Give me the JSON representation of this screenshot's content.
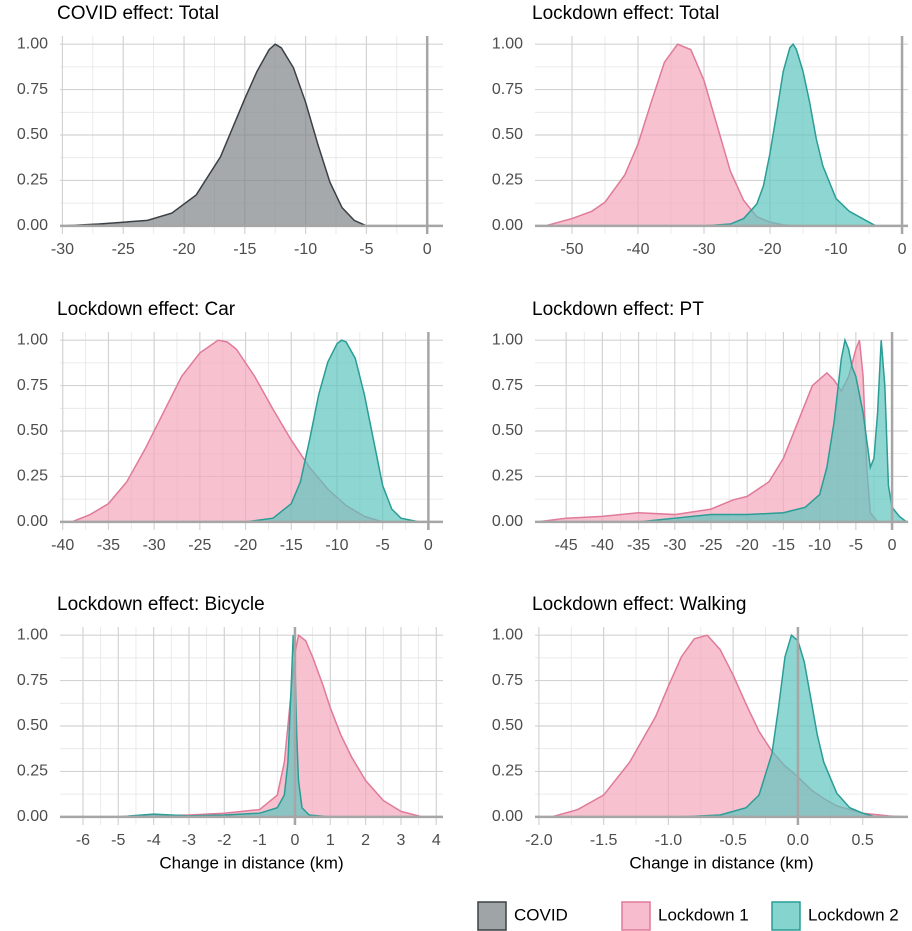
{
  "chart_data": [
    {
      "type": "area",
      "title": "COVID effect: Total",
      "xlim": [
        -30.2,
        1.3
      ],
      "xticks": [
        -30,
        -25,
        -20,
        -15,
        -10,
        -5,
        0
      ],
      "ylim": [
        -0.045,
        1.045
      ],
      "yticks": [
        {
          "value": 0,
          "label": "0.00"
        },
        {
          "value": 0.25,
          "label": "0.25"
        },
        {
          "value": 0.5,
          "label": "0.50"
        },
        {
          "value": 0.75,
          "label": "0.75"
        },
        {
          "value": 1,
          "label": "1.00"
        }
      ],
      "grid": true,
      "series": [
        {
          "name": "COVID",
          "color": "#7f8589",
          "edge_color": "#3a4045",
          "x": [
            -30,
            -27,
            -25,
            -23,
            -21,
            -19,
            -17,
            -15,
            -14,
            -13,
            -12.5,
            -12,
            -11,
            -10,
            -9,
            -8,
            -7,
            -6,
            -5
          ],
          "values": [
            0,
            0.01,
            0.02,
            0.03,
            0.07,
            0.17,
            0.38,
            0.7,
            0.85,
            0.97,
            1.0,
            0.98,
            0.87,
            0.68,
            0.45,
            0.24,
            0.1,
            0.03,
            0
          ]
        }
      ]
    },
    {
      "type": "area",
      "title": "Lockdown effect: Total",
      "xlim": [
        -55.6,
        0.9
      ],
      "xticks": [
        -50,
        -40,
        -30,
        -20,
        -10,
        0
      ],
      "ylim": [
        -0.045,
        1.045
      ],
      "yticks": [
        {
          "value": 0,
          "label": "0.00"
        },
        {
          "value": 0.25,
          "label": "0.25"
        },
        {
          "value": 0.5,
          "label": "0.50"
        },
        {
          "value": 0.75,
          "label": "0.75"
        },
        {
          "value": 1,
          "label": "1.00"
        }
      ],
      "grid": true,
      "series": [
        {
          "name": "Lockdown 1",
          "color": "#f4a6bc",
          "edge_color": "#e07a98",
          "x": [
            -54,
            -50,
            -47,
            -45,
            -42,
            -40,
            -38,
            -36,
            -34,
            -32,
            -30,
            -28,
            -26,
            -24,
            -22,
            -20,
            -18,
            -16
          ],
          "values": [
            0,
            0.04,
            0.08,
            0.13,
            0.28,
            0.45,
            0.68,
            0.9,
            1.0,
            0.97,
            0.8,
            0.55,
            0.3,
            0.14,
            0.05,
            0.02,
            0.005,
            0
          ]
        },
        {
          "name": "Lockdown 2",
          "color": "#5cc5bd",
          "edge_color": "#2a9d96",
          "x": [
            -30,
            -26,
            -24,
            -22,
            -21,
            -20,
            -19,
            -18,
            -17,
            -16.5,
            -16,
            -15,
            -14,
            -13,
            -12,
            -10,
            -8,
            -6,
            -4
          ],
          "values": [
            0,
            0.01,
            0.04,
            0.12,
            0.22,
            0.4,
            0.62,
            0.85,
            0.98,
            1.0,
            0.97,
            0.85,
            0.68,
            0.48,
            0.33,
            0.15,
            0.08,
            0.04,
            0
          ]
        }
      ]
    },
    {
      "type": "area",
      "title": "Lockdown effect: Car",
      "xlim": [
        -40.3,
        1.6
      ],
      "xticks": [
        -40,
        -35,
        -30,
        -25,
        -20,
        -15,
        -10,
        -5,
        0
      ],
      "ylim": [
        -0.045,
        1.045
      ],
      "yticks": [
        {
          "value": 0,
          "label": "0.00"
        },
        {
          "value": 0.25,
          "label": "0.25"
        },
        {
          "value": 0.5,
          "label": "0.50"
        },
        {
          "value": 0.75,
          "label": "0.75"
        },
        {
          "value": 1,
          "label": "1.00"
        }
      ],
      "grid": true,
      "series": [
        {
          "name": "Lockdown 1",
          "color": "#f4a6bc",
          "edge_color": "#e07a98",
          "x": [
            -39,
            -37,
            -35,
            -33,
            -31,
            -29,
            -27,
            -25,
            -23,
            -22,
            -21,
            -19,
            -17,
            -15,
            -13,
            -11,
            -9,
            -7,
            -5
          ],
          "values": [
            0,
            0.04,
            0.1,
            0.22,
            0.4,
            0.6,
            0.8,
            0.93,
            1.0,
            0.99,
            0.95,
            0.8,
            0.62,
            0.45,
            0.3,
            0.18,
            0.09,
            0.03,
            0
          ]
        },
        {
          "name": "Lockdown 2",
          "color": "#5cc5bd",
          "edge_color": "#2a9d96",
          "x": [
            -20,
            -17,
            -15,
            -14,
            -13,
            -12,
            -11,
            -10,
            -9.5,
            -9,
            -8,
            -7,
            -6,
            -5,
            -4,
            -3,
            -1
          ],
          "values": [
            0,
            0.02,
            0.1,
            0.22,
            0.45,
            0.7,
            0.88,
            0.98,
            1.0,
            0.99,
            0.9,
            0.7,
            0.45,
            0.2,
            0.07,
            0.02,
            0
          ]
        }
      ]
    },
    {
      "type": "area",
      "title": "Lockdown effect: PT",
      "xlim": [
        -49.3,
        2.2
      ],
      "xticks": [
        -45,
        -40,
        -35,
        -30,
        -25,
        -20,
        -15,
        -10,
        -5,
        0
      ],
      "ylim": [
        -0.045,
        1.045
      ],
      "yticks": [
        {
          "value": 0,
          "label": "0.00"
        },
        {
          "value": 0.25,
          "label": "0.25"
        },
        {
          "value": 0.5,
          "label": "0.50"
        },
        {
          "value": 0.75,
          "label": "0.75"
        },
        {
          "value": 1,
          "label": "1.00"
        }
      ],
      "grid": true,
      "series": [
        {
          "name": "Lockdown 1",
          "color": "#f4a6bc",
          "edge_color": "#e07a98",
          "x": [
            -49,
            -45,
            -40,
            -35,
            -30,
            -25,
            -22,
            -20,
            -17,
            -15,
            -13,
            -11,
            -9,
            -8,
            -7,
            -6,
            -5,
            -4.5,
            -4,
            -3.5,
            -3,
            -2
          ],
          "values": [
            0,
            0.02,
            0.03,
            0.05,
            0.04,
            0.07,
            0.12,
            0.14,
            0.22,
            0.35,
            0.55,
            0.75,
            0.82,
            0.78,
            0.72,
            0.8,
            0.95,
            1.0,
            0.8,
            0.3,
            0.05,
            0
          ]
        },
        {
          "name": "Lockdown 2",
          "color": "#5cc5bd",
          "edge_color": "#2a9d96",
          "x": [
            -35,
            -30,
            -25,
            -20,
            -15,
            -12,
            -10,
            -9,
            -8,
            -7,
            -6.5,
            -6,
            -5.5,
            -5,
            -4,
            -3,
            -2.5,
            -2,
            -1.5,
            -1,
            -0.5,
            0,
            1,
            2
          ],
          "values": [
            0,
            0.02,
            0.04,
            0.04,
            0.05,
            0.08,
            0.15,
            0.3,
            0.55,
            0.9,
            1.0,
            0.95,
            0.85,
            0.8,
            0.6,
            0.3,
            0.35,
            0.6,
            1.0,
            0.75,
            0.2,
            0.08,
            0.03,
            0
          ]
        }
      ]
    },
    {
      "type": "area",
      "title": "Lockdown effect: Bicycle",
      "xlabel": "Change in distance (km)",
      "xlim": [
        -6.65,
        4.19
      ],
      "xticks": [
        -6,
        -5,
        -4,
        -3,
        -2,
        -1,
        0,
        1,
        2,
        3,
        4
      ],
      "ylim": [
        -0.045,
        1.045
      ],
      "yticks": [
        {
          "value": 0,
          "label": "0.00"
        },
        {
          "value": 0.25,
          "label": "0.25"
        },
        {
          "value": 0.5,
          "label": "0.50"
        },
        {
          "value": 0.75,
          "label": "0.75"
        },
        {
          "value": 1,
          "label": "1.00"
        }
      ],
      "grid": true,
      "series": [
        {
          "name": "Lockdown 1",
          "color": "#f4a6bc",
          "edge_color": "#e07a98",
          "x": [
            -6.5,
            -5,
            -4,
            -3,
            -2,
            -1,
            -0.5,
            -0.3,
            -0.1,
            0,
            0.1,
            0.3,
            0.5,
            0.8,
            1,
            1.3,
            1.6,
            2,
            2.5,
            3,
            3.6
          ],
          "values": [
            0,
            0,
            0.005,
            0.01,
            0.02,
            0.04,
            0.12,
            0.3,
            0.7,
            0.9,
            1.0,
            0.97,
            0.88,
            0.72,
            0.6,
            0.45,
            0.33,
            0.2,
            0.09,
            0.03,
            0
          ]
        },
        {
          "name": "Lockdown 2",
          "color": "#5cc5bd",
          "edge_color": "#2a9d96",
          "x": [
            -6,
            -5,
            -4,
            -3.5,
            -3,
            -2,
            -1,
            -0.5,
            -0.3,
            -0.2,
            -0.1,
            -0.05,
            0,
            0.05,
            0.1,
            0.2,
            0.4,
            1
          ],
          "values": [
            0,
            0,
            0.015,
            0.01,
            0.005,
            0.01,
            0.02,
            0.05,
            0.12,
            0.3,
            0.75,
            1.0,
            0.85,
            0.45,
            0.2,
            0.05,
            0.01,
            0
          ]
        }
      ]
    },
    {
      "type": "area",
      "title": "Lockdown effect: Walking",
      "xlabel": "Change in distance (km)",
      "xlim": [
        -2.03,
        0.85
      ],
      "xticks": [
        {
          "value": -2,
          "label": "-2.0"
        },
        {
          "value": -1.5,
          "label": "-1.5"
        },
        {
          "value": -1,
          "label": "-1.0"
        },
        {
          "value": -0.5,
          "label": "-0.5"
        },
        {
          "value": 0,
          "label": "0.0"
        },
        0.5
      ],
      "ylim": [
        -0.045,
        1.045
      ],
      "yticks": [
        {
          "value": 0,
          "label": "0.00"
        },
        {
          "value": 0.25,
          "label": "0.25"
        },
        {
          "value": 0.5,
          "label": "0.50"
        },
        {
          "value": 0.75,
          "label": "0.75"
        },
        {
          "value": 1,
          "label": "1.00"
        }
      ],
      "grid": true,
      "series": [
        {
          "name": "Lockdown 1",
          "color": "#f4a6bc",
          "edge_color": "#e07a98",
          "x": [
            -1.9,
            -1.7,
            -1.5,
            -1.3,
            -1.1,
            -1.0,
            -0.9,
            -0.8,
            -0.7,
            -0.6,
            -0.5,
            -0.4,
            -0.3,
            -0.2,
            -0.1,
            0,
            0.1,
            0.2,
            0.3,
            0.5,
            0.7,
            0.85
          ],
          "values": [
            0,
            0.04,
            0.12,
            0.3,
            0.55,
            0.72,
            0.88,
            0.98,
            1.0,
            0.92,
            0.78,
            0.62,
            0.47,
            0.36,
            0.28,
            0.22,
            0.15,
            0.1,
            0.06,
            0.02,
            0.005,
            0
          ]
        },
        {
          "name": "Lockdown 2",
          "color": "#5cc5bd",
          "edge_color": "#2a9d96",
          "x": [
            -0.9,
            -0.6,
            -0.4,
            -0.3,
            -0.2,
            -0.15,
            -0.1,
            -0.05,
            0,
            0.05,
            0.1,
            0.15,
            0.2,
            0.3,
            0.4,
            0.5,
            0.6
          ],
          "values": [
            0,
            0.01,
            0.05,
            0.12,
            0.35,
            0.6,
            0.88,
            1.0,
            0.97,
            0.85,
            0.65,
            0.45,
            0.3,
            0.13,
            0.05,
            0.02,
            0
          ]
        }
      ]
    }
  ]
}
